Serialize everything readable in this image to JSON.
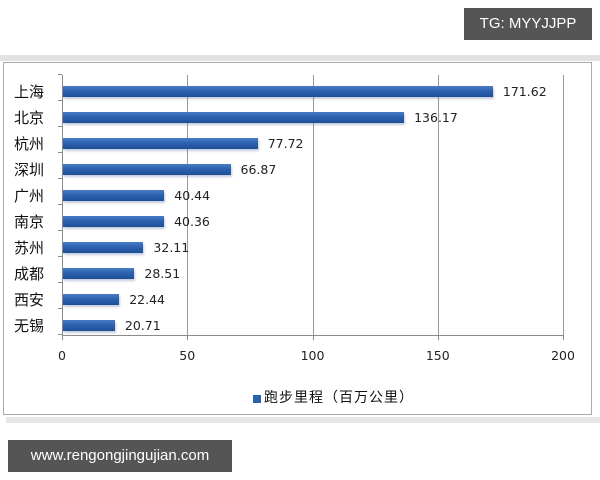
{
  "watermarks": {
    "top_right": "TG: MYYJJPP",
    "bottom_left": "www.rengongjingujian.com"
  },
  "chart_data": {
    "type": "bar",
    "orientation": "horizontal",
    "title": "",
    "categories": [
      "上海",
      "北京",
      "杭州",
      "深圳",
      "广州",
      "南京",
      "苏州",
      "成都",
      "西安",
      "无锡"
    ],
    "series": [
      {
        "name": "跑步里程（百万公里）",
        "color": "#2b62b0",
        "values": [
          171.62,
          136.17,
          77.72,
          66.87,
          40.44,
          40.36,
          32.11,
          28.51,
          22.44,
          20.71
        ],
        "value_labels": [
          "171.62",
          "136.17",
          "77.72",
          "66.87",
          "40.44",
          "40.36",
          "32.11",
          "28.51",
          "22.44",
          "20.71"
        ]
      }
    ],
    "xlabel": "",
    "ylabel": "",
    "xlim": [
      0,
      200
    ],
    "x_ticks": [
      "0",
      "50",
      "100",
      "150",
      "200"
    ],
    "grid": "vertical major gridlines",
    "legend": {
      "position": "bottom",
      "entries": [
        "跑步里程（百万公里）"
      ]
    }
  }
}
